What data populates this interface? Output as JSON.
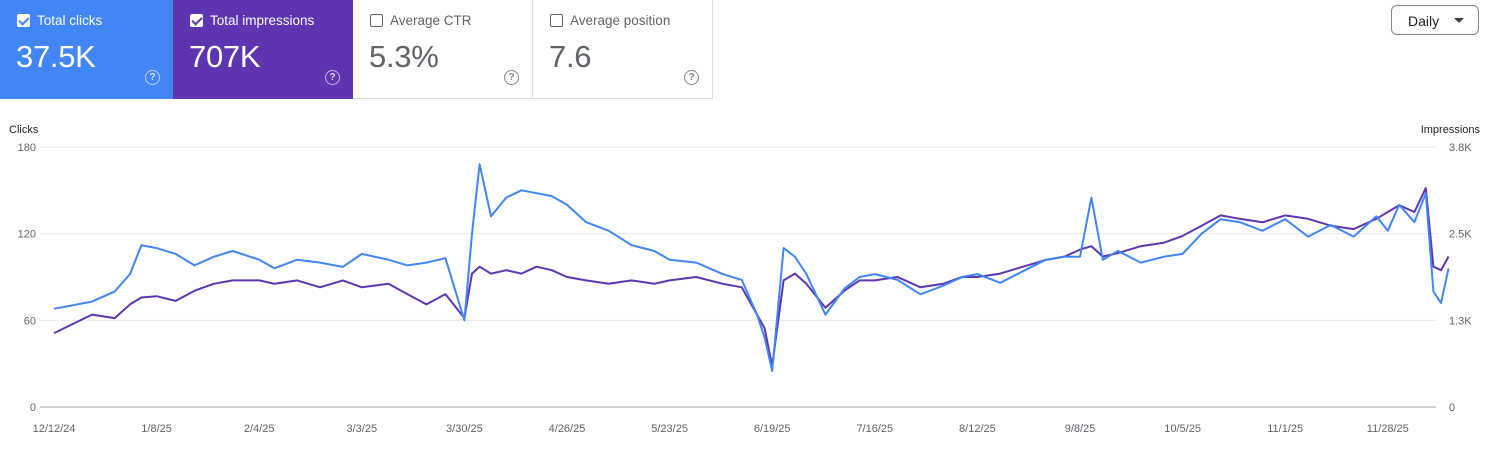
{
  "metrics": [
    {
      "id": "clicks",
      "label": "Total clicks",
      "value": "37.5K",
      "selected": true,
      "color": "#4285f4"
    },
    {
      "id": "impressions",
      "label": "Total impressions",
      "value": "707K",
      "selected": true,
      "color": "#5e35b1"
    },
    {
      "id": "ctr",
      "label": "Average CTR",
      "value": "5.3%",
      "selected": false
    },
    {
      "id": "position",
      "label": "Average position",
      "value": "7.6",
      "selected": false
    }
  ],
  "help_glyph": "?",
  "granularity": {
    "label": "Daily",
    "icon": "caret-down-icon"
  },
  "chart_data": {
    "type": "line",
    "xlabel": "",
    "left_axis": {
      "title": "Clicks",
      "ticks": [
        "180",
        "120",
        "60",
        "0"
      ],
      "ylim": [
        0,
        180
      ]
    },
    "right_axis": {
      "title": "Impressions",
      "ticks": [
        "3.8K",
        "2.5K",
        "1.3K",
        "0"
      ],
      "ylim": [
        0,
        3800
      ]
    },
    "x_ticks": [
      "12/12/24",
      "1/8/25",
      "2/4/25",
      "3/3/25",
      "3/30/25",
      "4/26/25",
      "5/23/25",
      "6/19/25",
      "7/16/25",
      "8/12/25",
      "9/8/25",
      "10/5/25",
      "11/1/25",
      "11/28/25"
    ],
    "grid": "horizontal",
    "series": [
      {
        "name": "Total clicks",
        "axis": "left",
        "color": "#4285f4",
        "x": [
          "2024-12-12",
          "2024-12-22",
          "2024-12-28",
          "2025-01-01",
          "2025-01-04",
          "2025-01-08",
          "2025-01-13",
          "2025-01-18",
          "2025-01-23",
          "2025-01-28",
          "2025-02-04",
          "2025-02-08",
          "2025-02-14",
          "2025-02-20",
          "2025-02-26",
          "2025-03-03",
          "2025-03-10",
          "2025-03-15",
          "2025-03-20",
          "2025-03-25",
          "2025-03-30",
          "2025-04-01",
          "2025-04-03",
          "2025-04-06",
          "2025-04-10",
          "2025-04-14",
          "2025-04-18",
          "2025-04-22",
          "2025-04-26",
          "2025-05-01",
          "2025-05-07",
          "2025-05-13",
          "2025-05-19",
          "2025-05-23",
          "2025-05-30",
          "2025-06-06",
          "2025-06-11",
          "2025-06-15",
          "2025-06-17",
          "2025-06-19",
          "2025-06-22",
          "2025-06-25",
          "2025-06-28",
          "2025-07-03",
          "2025-07-08",
          "2025-07-12",
          "2025-07-16",
          "2025-07-22",
          "2025-07-28",
          "2025-08-03",
          "2025-08-08",
          "2025-08-12",
          "2025-08-18",
          "2025-08-24",
          "2025-08-30",
          "2025-09-04",
          "2025-09-08",
          "2025-09-11",
          "2025-09-14",
          "2025-09-18",
          "2025-09-24",
          "2025-09-30",
          "2025-10-05",
          "2025-10-10",
          "2025-10-15",
          "2025-10-20",
          "2025-10-26",
          "2025-11-01",
          "2025-11-07",
          "2025-11-13",
          "2025-11-19",
          "2025-11-25",
          "2025-11-28",
          "2025-12-01",
          "2025-12-05",
          "2025-12-08",
          "2025-12-10",
          "2025-12-12",
          "2025-12-14"
        ],
        "values": [
          68,
          73,
          80,
          92,
          112,
          110,
          106,
          98,
          104,
          108,
          102,
          96,
          102,
          100,
          97,
          106,
          102,
          98,
          100,
          103,
          60,
          120,
          168,
          132,
          145,
          150,
          148,
          146,
          140,
          128,
          122,
          112,
          108,
          102,
          100,
          92,
          88,
          64,
          48,
          25,
          110,
          104,
          92,
          64,
          82,
          90,
          92,
          88,
          78,
          84,
          90,
          92,
          86,
          94,
          102,
          104,
          104,
          145,
          102,
          108,
          100,
          104,
          106,
          120,
          130,
          128,
          122,
          130,
          118,
          126,
          118,
          132,
          122,
          140,
          128,
          148,
          80,
          72,
          96
        ]
      },
      {
        "name": "Total impressions",
        "axis": "right",
        "color": "#5e35b1",
        "x": [
          "2024-12-12",
          "2024-12-22",
          "2024-12-28",
          "2025-01-01",
          "2025-01-04",
          "2025-01-08",
          "2025-01-13",
          "2025-01-18",
          "2025-01-23",
          "2025-01-28",
          "2025-02-04",
          "2025-02-08",
          "2025-02-14",
          "2025-02-20",
          "2025-02-26",
          "2025-03-03",
          "2025-03-10",
          "2025-03-15",
          "2025-03-20",
          "2025-03-25",
          "2025-03-30",
          "2025-04-01",
          "2025-04-03",
          "2025-04-06",
          "2025-04-10",
          "2025-04-14",
          "2025-04-18",
          "2025-04-22",
          "2025-04-26",
          "2025-05-01",
          "2025-05-07",
          "2025-05-13",
          "2025-05-19",
          "2025-05-23",
          "2025-05-30",
          "2025-06-06",
          "2025-06-11",
          "2025-06-15",
          "2025-06-17",
          "2025-06-19",
          "2025-06-22",
          "2025-06-25",
          "2025-06-28",
          "2025-07-03",
          "2025-07-08",
          "2025-07-12",
          "2025-07-16",
          "2025-07-22",
          "2025-07-28",
          "2025-08-03",
          "2025-08-08",
          "2025-08-12",
          "2025-08-18",
          "2025-08-24",
          "2025-08-30",
          "2025-09-04",
          "2025-09-08",
          "2025-09-11",
          "2025-09-14",
          "2025-09-18",
          "2025-09-24",
          "2025-09-30",
          "2025-10-05",
          "2025-10-10",
          "2025-10-15",
          "2025-10-20",
          "2025-10-26",
          "2025-11-01",
          "2025-11-07",
          "2025-11-13",
          "2025-11-19",
          "2025-11-25",
          "2025-11-28",
          "2025-12-01",
          "2025-12-05",
          "2025-12-08",
          "2025-12-10",
          "2025-12-12",
          "2025-12-14"
        ],
        "values": [
          1080,
          1350,
          1300,
          1500,
          1600,
          1620,
          1550,
          1700,
          1800,
          1850,
          1850,
          1800,
          1850,
          1750,
          1850,
          1750,
          1800,
          1650,
          1500,
          1650,
          1300,
          1950,
          2050,
          1950,
          2000,
          1950,
          2050,
          2000,
          1900,
          1850,
          1800,
          1850,
          1800,
          1850,
          1900,
          1800,
          1750,
          1350,
          1150,
          600,
          1850,
          1950,
          1800,
          1450,
          1700,
          1850,
          1850,
          1900,
          1750,
          1800,
          1900,
          1900,
          1950,
          2050,
          2150,
          2200,
          2300,
          2350,
          2200,
          2250,
          2350,
          2400,
          2500,
          2650,
          2800,
          2750,
          2700,
          2800,
          2750,
          2650,
          2600,
          2750,
          2850,
          2950,
          2850,
          3200,
          2050,
          2000,
          2200
        ]
      }
    ]
  }
}
